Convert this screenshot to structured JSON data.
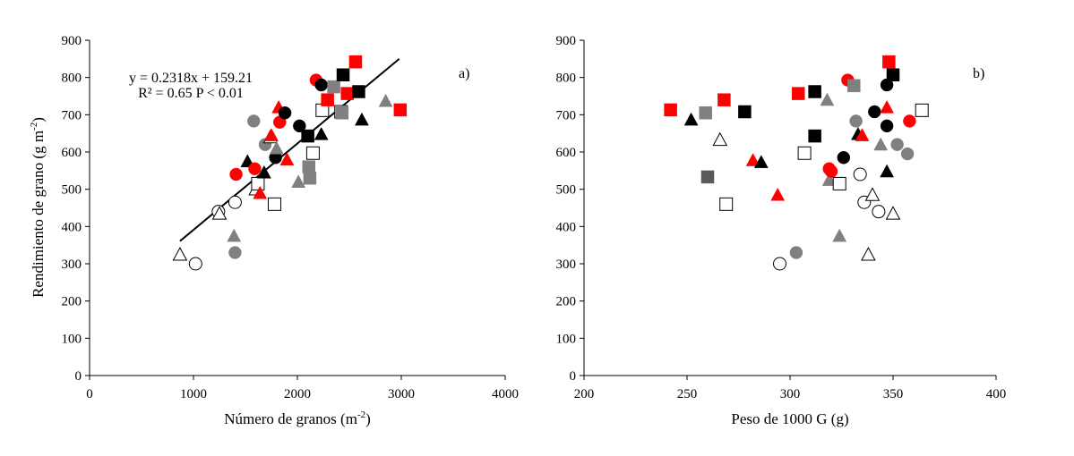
{
  "chart_data": [
    {
      "type": "scatter",
      "panel_label": "a)",
      "xlabel": "Número de granos (m",
      "xlabel_sup": "-2",
      "xlabel_tail": ")",
      "ylabel": "Rendimiento de grano (g m",
      "ylabel_sup": "-2",
      "ylabel_tail": ")",
      "xlim": [
        0,
        4000
      ],
      "ylim": [
        0,
        900
      ],
      "xticks": [
        "0",
        "1000",
        "2000",
        "3000",
        "4000"
      ],
      "yticks": [
        "0",
        "100",
        "200",
        "300",
        "400",
        "500",
        "600",
        "700",
        "800",
        "900"
      ],
      "equation": "y = 0.2318x + 159.21",
      "r2": "R² = 0.65 P < 0.01",
      "trendline": {
        "x": [
          870,
          2980
        ],
        "slope": 0.2318,
        "intercept": 159.21
      },
      "points": [
        {
          "x": 870,
          "y": 325,
          "shape": "triangle",
          "fill": "open"
        },
        {
          "x": 1020,
          "y": 300,
          "shape": "circle",
          "fill": "open"
        },
        {
          "x": 1240,
          "y": 440,
          "shape": "circle",
          "fill": "open"
        },
        {
          "x": 1250,
          "y": 435,
          "shape": "triangle",
          "fill": "open"
        },
        {
          "x": 1390,
          "y": 375,
          "shape": "triangle",
          "fill": "gray"
        },
        {
          "x": 1400,
          "y": 330,
          "shape": "circle",
          "fill": "gray"
        },
        {
          "x": 1400,
          "y": 465,
          "shape": "circle",
          "fill": "open"
        },
        {
          "x": 1410,
          "y": 540,
          "shape": "circle",
          "fill": "red"
        },
        {
          "x": 1520,
          "y": 575,
          "shape": "triangle",
          "fill": "black"
        },
        {
          "x": 1580,
          "y": 683,
          "shape": "circle",
          "fill": "gray"
        },
        {
          "x": 1590,
          "y": 555,
          "shape": "circle",
          "fill": "red"
        },
        {
          "x": 1600,
          "y": 500,
          "shape": "triangle",
          "fill": "open"
        },
        {
          "x": 1620,
          "y": 515,
          "shape": "square",
          "fill": "open"
        },
        {
          "x": 1640,
          "y": 490,
          "shape": "triangle",
          "fill": "red"
        },
        {
          "x": 1680,
          "y": 545,
          "shape": "triangle",
          "fill": "black"
        },
        {
          "x": 1690,
          "y": 620,
          "shape": "circle",
          "fill": "gray"
        },
        {
          "x": 1740,
          "y": 640,
          "shape": "triangle",
          "fill": "open"
        },
        {
          "x": 1750,
          "y": 645,
          "shape": "triangle",
          "fill": "red"
        },
        {
          "x": 1780,
          "y": 460,
          "shape": "square",
          "fill": "open"
        },
        {
          "x": 1790,
          "y": 585,
          "shape": "circle",
          "fill": "black"
        },
        {
          "x": 1800,
          "y": 610,
          "shape": "triangle",
          "fill": "gray"
        },
        {
          "x": 1820,
          "y": 720,
          "shape": "triangle",
          "fill": "red"
        },
        {
          "x": 1830,
          "y": 680,
          "shape": "circle",
          "fill": "red"
        },
        {
          "x": 1880,
          "y": 705,
          "shape": "circle",
          "fill": "black"
        },
        {
          "x": 1900,
          "y": 580,
          "shape": "triangle",
          "fill": "red"
        },
        {
          "x": 2010,
          "y": 520,
          "shape": "triangle",
          "fill": "gray"
        },
        {
          "x": 2020,
          "y": 670,
          "shape": "circle",
          "fill": "black"
        },
        {
          "x": 2100,
          "y": 643,
          "shape": "square",
          "fill": "black"
        },
        {
          "x": 2110,
          "y": 560,
          "shape": "square",
          "fill": "gray"
        },
        {
          "x": 2120,
          "y": 530,
          "shape": "square",
          "fill": "gray"
        },
        {
          "x": 2150,
          "y": 597,
          "shape": "square",
          "fill": "open"
        },
        {
          "x": 2180,
          "y": 793,
          "shape": "circle",
          "fill": "red"
        },
        {
          "x": 2230,
          "y": 780,
          "shape": "circle",
          "fill": "black"
        },
        {
          "x": 2230,
          "y": 648,
          "shape": "triangle",
          "fill": "black"
        },
        {
          "x": 2240,
          "y": 712,
          "shape": "square",
          "fill": "open"
        },
        {
          "x": 2290,
          "y": 740,
          "shape": "square",
          "fill": "red"
        },
        {
          "x": 2350,
          "y": 775,
          "shape": "square",
          "fill": "gray"
        },
        {
          "x": 2420,
          "y": 708,
          "shape": "square",
          "fill": "open"
        },
        {
          "x": 2430,
          "y": 705,
          "shape": "square",
          "fill": "gray"
        },
        {
          "x": 2440,
          "y": 807,
          "shape": "square",
          "fill": "black"
        },
        {
          "x": 2480,
          "y": 757,
          "shape": "square",
          "fill": "red"
        },
        {
          "x": 2560,
          "y": 842,
          "shape": "square",
          "fill": "red"
        },
        {
          "x": 2590,
          "y": 762,
          "shape": "square",
          "fill": "black"
        },
        {
          "x": 2620,
          "y": 687,
          "shape": "triangle",
          "fill": "black"
        },
        {
          "x": 2850,
          "y": 737,
          "shape": "triangle",
          "fill": "gray"
        },
        {
          "x": 2990,
          "y": 713,
          "shape": "square",
          "fill": "red"
        }
      ]
    },
    {
      "type": "scatter",
      "panel_label": "b)",
      "xlabel": "Peso de 1000 G (g)",
      "xlim": [
        200,
        400
      ],
      "ylim": [
        0,
        900
      ],
      "xticks": [
        "200",
        "250",
        "300",
        "350",
        "400"
      ],
      "yticks": [
        "0",
        "100",
        "200",
        "300",
        "400",
        "500",
        "600",
        "700",
        "800",
        "900"
      ],
      "points": [
        {
          "x": 242,
          "y": 713,
          "shape": "square",
          "fill": "red"
        },
        {
          "x": 252,
          "y": 687,
          "shape": "triangle",
          "fill": "black"
        },
        {
          "x": 259,
          "y": 705,
          "shape": "square",
          "fill": "gray"
        },
        {
          "x": 260,
          "y": 533,
          "shape": "square",
          "fill": "darkgray"
        },
        {
          "x": 266,
          "y": 633,
          "shape": "triangle",
          "fill": "open"
        },
        {
          "x": 268,
          "y": 740,
          "shape": "square",
          "fill": "red"
        },
        {
          "x": 269,
          "y": 460,
          "shape": "square",
          "fill": "open"
        },
        {
          "x": 278,
          "y": 708,
          "shape": "square",
          "fill": "black"
        },
        {
          "x": 282,
          "y": 578,
          "shape": "triangle",
          "fill": "red"
        },
        {
          "x": 286,
          "y": 573,
          "shape": "triangle",
          "fill": "black"
        },
        {
          "x": 294,
          "y": 485,
          "shape": "triangle",
          "fill": "red"
        },
        {
          "x": 295,
          "y": 300,
          "shape": "circle",
          "fill": "open"
        },
        {
          "x": 303,
          "y": 330,
          "shape": "circle",
          "fill": "gray"
        },
        {
          "x": 304,
          "y": 757,
          "shape": "square",
          "fill": "red"
        },
        {
          "x": 307,
          "y": 597,
          "shape": "square",
          "fill": "open"
        },
        {
          "x": 312,
          "y": 762,
          "shape": "square",
          "fill": "black"
        },
        {
          "x": 312,
          "y": 643,
          "shape": "square",
          "fill": "black"
        },
        {
          "x": 318,
          "y": 740,
          "shape": "triangle",
          "fill": "gray"
        },
        {
          "x": 319,
          "y": 555,
          "shape": "circle",
          "fill": "red"
        },
        {
          "x": 319,
          "y": 525,
          "shape": "triangle",
          "fill": "gray"
        },
        {
          "x": 320,
          "y": 548,
          "shape": "circle",
          "fill": "red"
        },
        {
          "x": 324,
          "y": 515,
          "shape": "square",
          "fill": "open"
        },
        {
          "x": 324,
          "y": 375,
          "shape": "triangle",
          "fill": "gray"
        },
        {
          "x": 326,
          "y": 585,
          "shape": "circle",
          "fill": "black"
        },
        {
          "x": 328,
          "y": 793,
          "shape": "circle",
          "fill": "red"
        },
        {
          "x": 331,
          "y": 778,
          "shape": "square",
          "fill": "gray"
        },
        {
          "x": 332,
          "y": 683,
          "shape": "circle",
          "fill": "gray"
        },
        {
          "x": 333,
          "y": 648,
          "shape": "triangle",
          "fill": "black"
        },
        {
          "x": 334,
          "y": 540,
          "shape": "circle",
          "fill": "open"
        },
        {
          "x": 335,
          "y": 645,
          "shape": "triangle",
          "fill": "red"
        },
        {
          "x": 336,
          "y": 465,
          "shape": "circle",
          "fill": "open"
        },
        {
          "x": 338,
          "y": 325,
          "shape": "triangle",
          "fill": "open"
        },
        {
          "x": 340,
          "y": 485,
          "shape": "triangle",
          "fill": "open"
        },
        {
          "x": 341,
          "y": 708,
          "shape": "circle",
          "fill": "black"
        },
        {
          "x": 343,
          "y": 440,
          "shape": "circle",
          "fill": "open"
        },
        {
          "x": 344,
          "y": 620,
          "shape": "triangle",
          "fill": "gray"
        },
        {
          "x": 347,
          "y": 720,
          "shape": "triangle",
          "fill": "red"
        },
        {
          "x": 347,
          "y": 780,
          "shape": "circle",
          "fill": "black"
        },
        {
          "x": 347,
          "y": 670,
          "shape": "circle",
          "fill": "black"
        },
        {
          "x": 347,
          "y": 548,
          "shape": "triangle",
          "fill": "black"
        },
        {
          "x": 348,
          "y": 842,
          "shape": "square",
          "fill": "red"
        },
        {
          "x": 350,
          "y": 807,
          "shape": "square",
          "fill": "black"
        },
        {
          "x": 350,
          "y": 435,
          "shape": "triangle",
          "fill": "open"
        },
        {
          "x": 352,
          "y": 620,
          "shape": "circle",
          "fill": "gray"
        },
        {
          "x": 357,
          "y": 595,
          "shape": "circle",
          "fill": "gray"
        },
        {
          "x": 358,
          "y": 683,
          "shape": "circle",
          "fill": "red"
        },
        {
          "x": 364,
          "y": 712,
          "shape": "square",
          "fill": "open"
        }
      ]
    }
  ],
  "colors": {
    "red": "#ff0000",
    "black": "#000000",
    "gray": "#808080",
    "darkgray": "#595959",
    "open": "#ffffff",
    "axis": "#000000"
  }
}
